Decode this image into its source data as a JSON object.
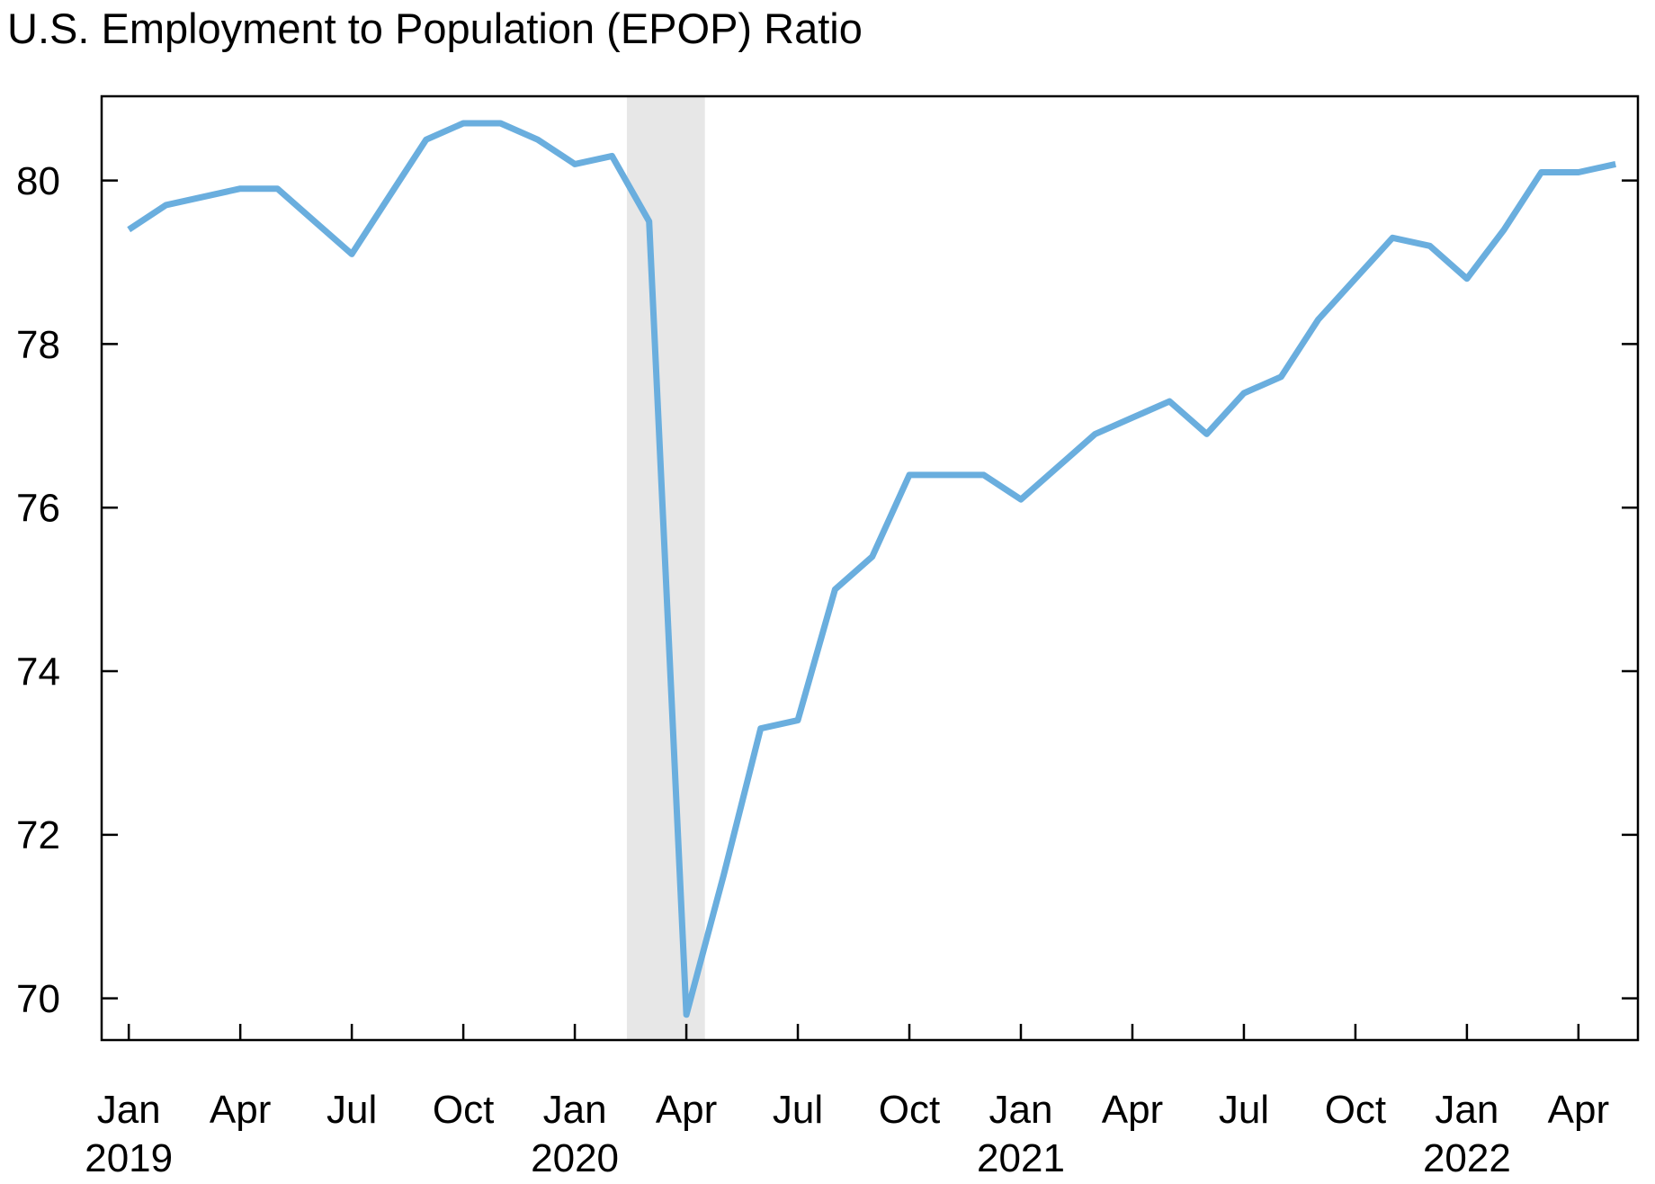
{
  "page": {
    "background": "#ffffff"
  },
  "chart_data": {
    "type": "line",
    "title": "U.S. Employment to Population (EPOP) Ratio",
    "xlabel": "",
    "ylabel": "",
    "x_unit": "month",
    "frequency": "monthly",
    "dates": [
      "2019-01",
      "2019-02",
      "2019-03",
      "2019-04",
      "2019-05",
      "2019-06",
      "2019-07",
      "2019-08",
      "2019-09",
      "2019-10",
      "2019-11",
      "2019-12",
      "2020-01",
      "2020-02",
      "2020-03",
      "2020-04",
      "2020-05",
      "2020-06",
      "2020-07",
      "2020-08",
      "2020-09",
      "2020-10",
      "2020-11",
      "2020-12",
      "2021-01",
      "2021-02",
      "2021-03",
      "2021-04",
      "2021-05",
      "2021-06",
      "2021-07",
      "2021-08",
      "2021-09",
      "2021-10",
      "2021-11",
      "2021-12",
      "2022-01",
      "2022-02",
      "2022-03",
      "2022-04",
      "2022-05"
    ],
    "series": [
      {
        "name": "U.S. Employment to Population (EPOP) Ratio",
        "color": "#6AAEDE",
        "stroke_width": 7,
        "values": [
          79.4,
          79.7,
          79.8,
          79.9,
          79.9,
          79.5,
          79.1,
          79.8,
          80.5,
          80.7,
          80.7,
          80.5,
          80.2,
          80.3,
          79.5,
          69.8,
          71.5,
          73.3,
          73.4,
          75.0,
          75.4,
          76.4,
          76.4,
          76.4,
          76.1,
          76.5,
          76.9,
          77.1,
          77.3,
          76.9,
          77.4,
          77.6,
          78.3,
          78.8,
          79.3,
          79.2,
          78.8,
          79.4,
          80.1,
          80.1,
          80.2
        ]
      }
    ],
    "y_ticks": [
      70,
      72,
      74,
      76,
      78,
      80
    ],
    "ylim": [
      69.49,
      81.03
    ],
    "xlim_month_index": [
      -0.73,
      40.6
    ],
    "x_ticks": [
      {
        "month_index": 0,
        "label": "Jan",
        "year": "2019"
      },
      {
        "month_index": 3,
        "label": "Apr"
      },
      {
        "month_index": 6,
        "label": "Jul"
      },
      {
        "month_index": 9,
        "label": "Oct"
      },
      {
        "month_index": 12,
        "label": "Jan",
        "year": "2020"
      },
      {
        "month_index": 15,
        "label": "Apr"
      },
      {
        "month_index": 18,
        "label": "Jul"
      },
      {
        "month_index": 21,
        "label": "Oct"
      },
      {
        "month_index": 24,
        "label": "Jan",
        "year": "2021"
      },
      {
        "month_index": 27,
        "label": "Apr"
      },
      {
        "month_index": 30,
        "label": "Jul"
      },
      {
        "month_index": 33,
        "label": "Oct"
      },
      {
        "month_index": 36,
        "label": "Jan",
        "year": "2022"
      },
      {
        "month_index": 39,
        "label": "Apr"
      }
    ],
    "recession_band": {
      "start_month_index": 13.4,
      "end_month_index": 15.5,
      "color": "#E7E7E7",
      "meaning": "COVID-19 recession shading (Feb-Apr 2020)"
    },
    "grid": false,
    "legend": "none",
    "axis_color": "#000000",
    "tick_style": "inward"
  }
}
